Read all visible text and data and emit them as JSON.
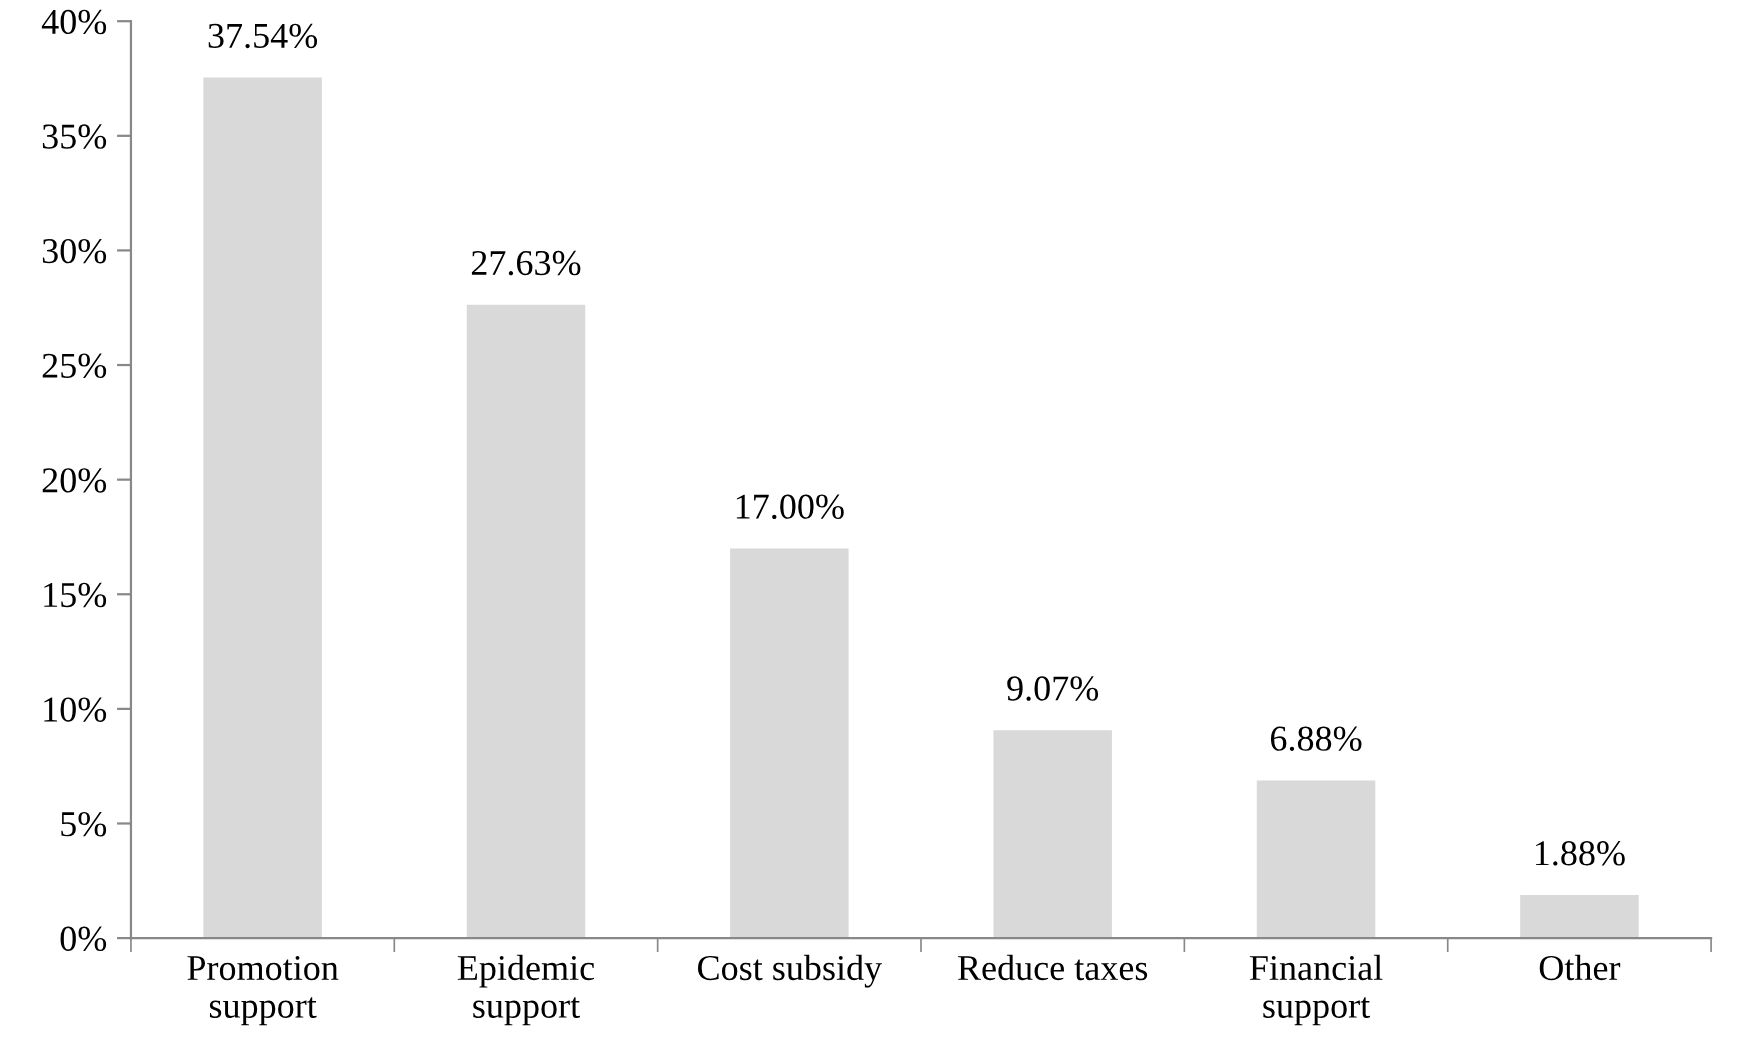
{
  "chart_data": {
    "type": "bar",
    "categories": [
      "Promotion\nsupport",
      "Epidemic\nsupport",
      "Cost subsidy",
      "Reduce taxes",
      "Financial\nsupport",
      "Other"
    ],
    "values": [
      37.54,
      27.63,
      17.0,
      9.07,
      6.88,
      1.88
    ],
    "value_labels": [
      "37.54%",
      "27.63%",
      "17.00%",
      "9.07%",
      "6.88%",
      "1.88%"
    ],
    "color": "#d9d9d9",
    "ylim": [
      0,
      40
    ],
    "yticks": [
      {
        "value": 0,
        "label": "0%"
      },
      {
        "value": 5,
        "label": "5%"
      },
      {
        "value": 10,
        "label": "10%"
      },
      {
        "value": 15,
        "label": "15%"
      },
      {
        "value": 20,
        "label": "20%"
      },
      {
        "value": 25,
        "label": "25%"
      },
      {
        "value": 30,
        "label": "30%"
      },
      {
        "value": 35,
        "label": "35%"
      },
      {
        "value": 40,
        "label": "40%"
      }
    ],
    "grid": false,
    "legend": false
  }
}
